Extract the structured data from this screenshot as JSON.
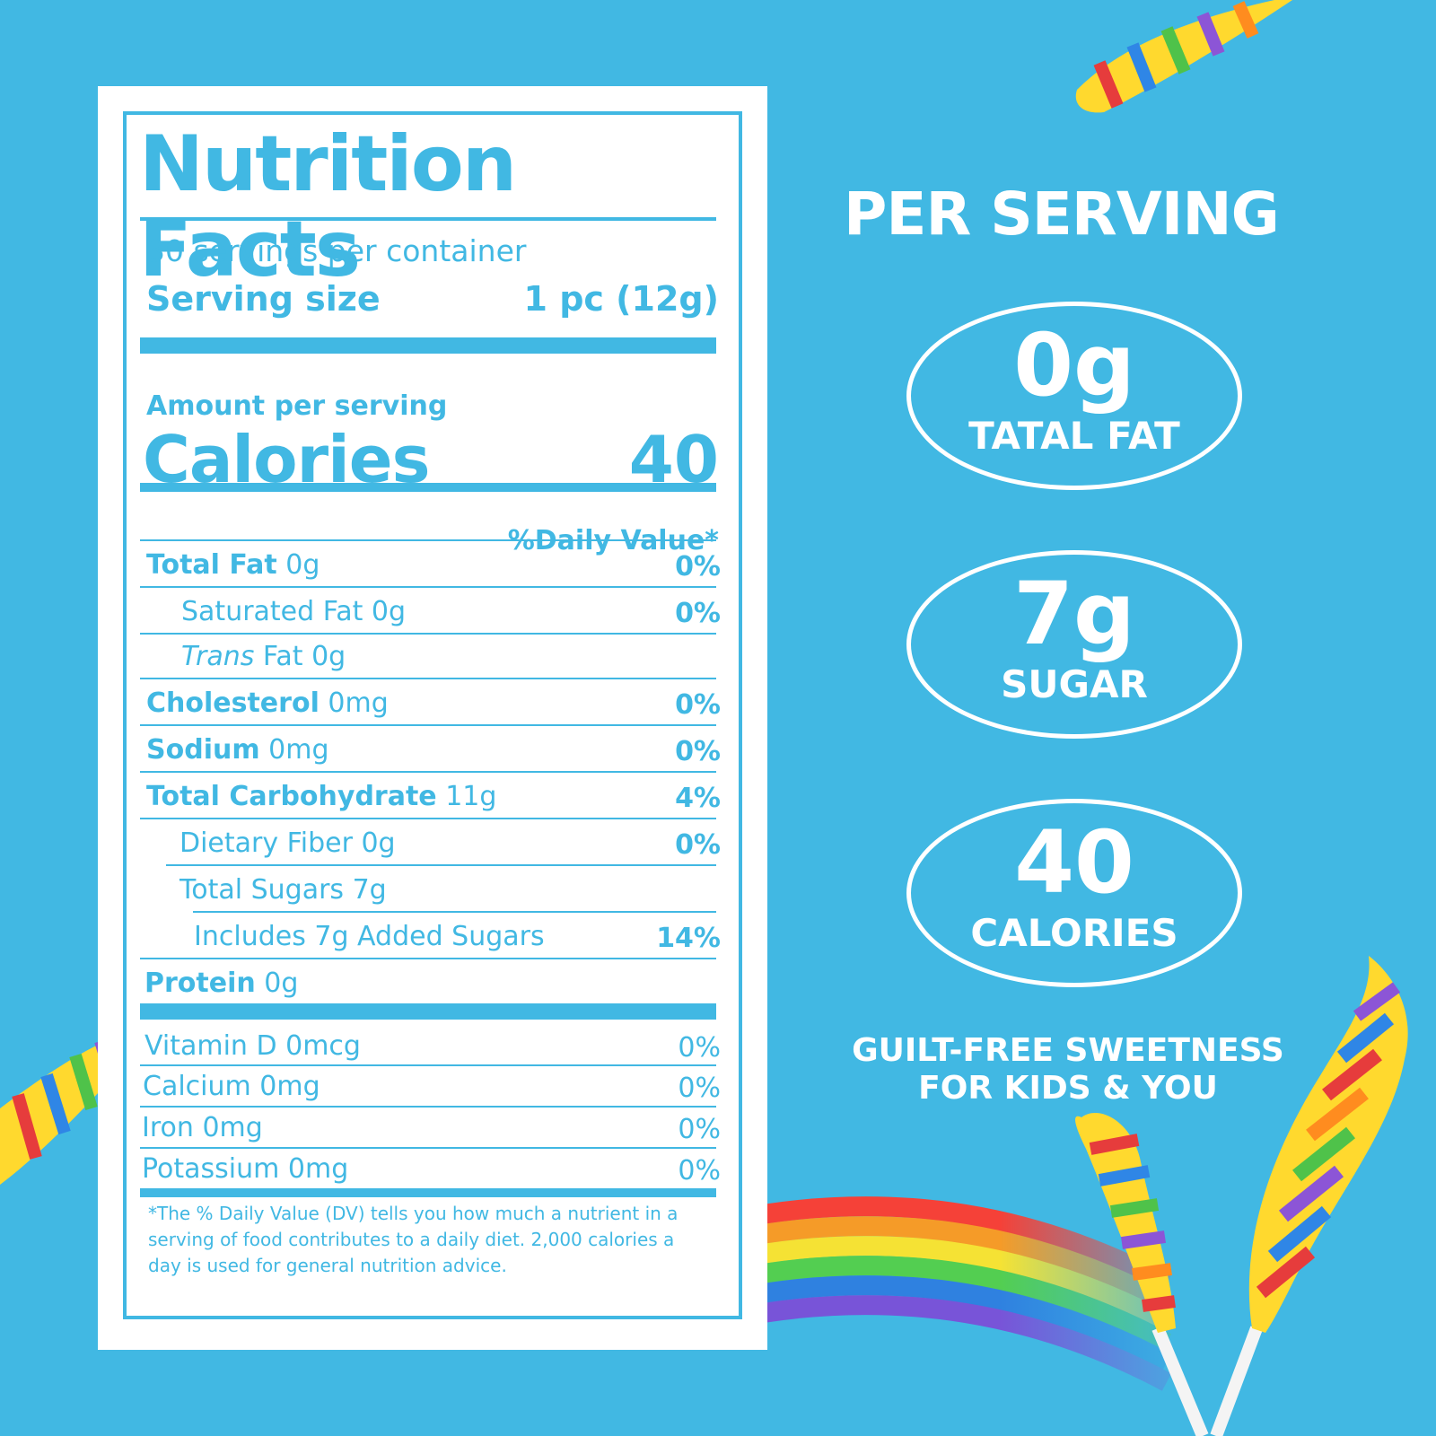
{
  "label": {
    "title": "Nutrition Facts",
    "servings_per_container": "30 servings per container",
    "serving_size_label": "Serving size",
    "serving_size_value": "1 pc (12g)",
    "amount_per_serving": "Amount per serving",
    "calories_label": "Calories",
    "calories_value": "40",
    "dv_header": "%Daily Value*",
    "nutrients": [
      {
        "name": "Total Fat",
        "amount": "0g",
        "dv": "0%"
      },
      {
        "name": "Saturated Fat",
        "amount": "0g",
        "dv": "0%"
      },
      {
        "name": "Trans",
        "amount": "Fat 0g",
        "dv": ""
      },
      {
        "name": "Cholesterol",
        "amount": "0mg",
        "dv": "0%"
      },
      {
        "name": "Sodium",
        "amount": "0mg",
        "dv": "0%"
      },
      {
        "name": "Total Carbohydrate",
        "amount": "11g",
        "dv": "4%"
      },
      {
        "name": "Dietary Fiber",
        "amount": "0g",
        "dv": "0%"
      },
      {
        "name": "Total Sugars",
        "amount": "7g",
        "dv": ""
      },
      {
        "name": "Includes 7g Added Sugars",
        "amount": "",
        "dv": "14%"
      },
      {
        "name": "Protein",
        "amount": "0g",
        "dv": ""
      }
    ],
    "vitamins": [
      {
        "name": "Vitamin D",
        "amount": "0mcg",
        "dv": "0%"
      },
      {
        "name": "Calcium",
        "amount": "0mg",
        "dv": "0%"
      },
      {
        "name": "Iron",
        "amount": "0mg",
        "dv": "0%"
      },
      {
        "name": "Potassium",
        "amount": "0mg",
        "dv": "0%"
      }
    ],
    "footnote": "*The % Daily Value (DV) tells you how much a nutrient in a serving of food contributes to a daily diet. 2,000 calories a day is used for general nutrition advice."
  },
  "highlights": {
    "heading": "PER SERVING",
    "fat_value": "0g",
    "fat_label": "TATAL FAT",
    "sugar_value": "7g",
    "sugar_label": "SUGAR",
    "calories_value": "40",
    "calories_label": "CALORIES",
    "tagline_line1": "GUILT-FREE SWEETNESS",
    "tagline_line2": "FOR KIDS & YOU"
  },
  "colors": {
    "background": "#41b8e3",
    "panel": "#ffffff",
    "accent": "#41b8e3",
    "text_light": "#ffffff"
  },
  "decorations": [
    "rainbow-twist-lollipop",
    "rainbow-arc"
  ]
}
